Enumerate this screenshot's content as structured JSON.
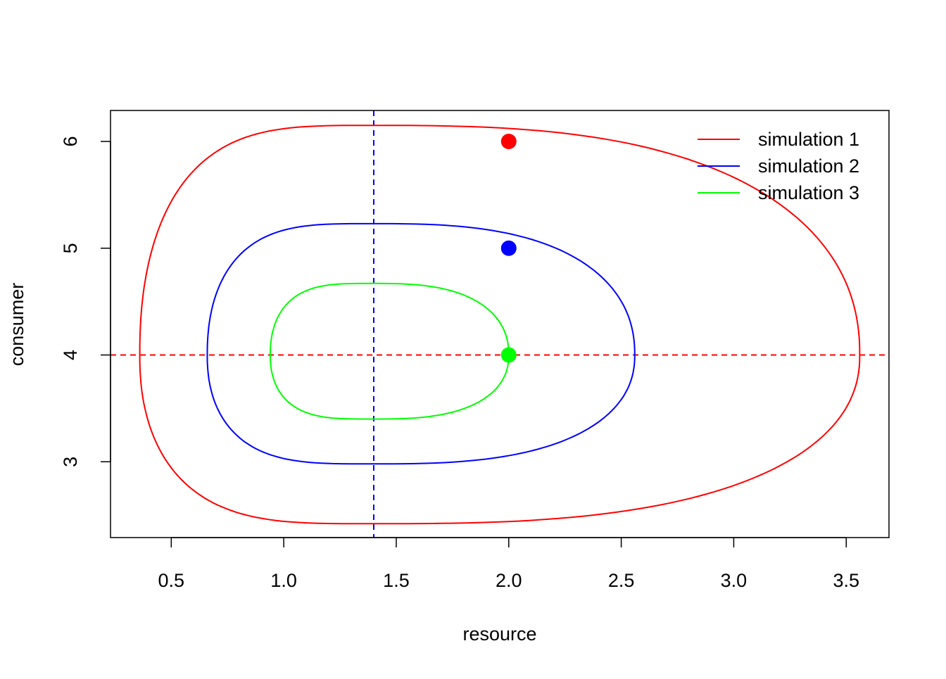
{
  "chart_data": {
    "type": "line",
    "title": "",
    "xlabel": "resource",
    "ylabel": "consumer",
    "xlim": [
      0.23,
      3.69
    ],
    "ylim": [
      2.29,
      6.29
    ],
    "xticks": [
      "0.5",
      "1.0",
      "1.5",
      "2.0",
      "2.5",
      "3.0",
      "3.5"
    ],
    "yticks": [
      "3",
      "4",
      "5",
      "6"
    ],
    "xtick_values": [
      0.5,
      1.0,
      1.5,
      2.0,
      2.5,
      3.0,
      3.5
    ],
    "ytick_values": [
      3,
      4,
      5,
      6
    ],
    "grid": false,
    "legend_position": "top-right",
    "reference_lines": [
      {
        "orientation": "vertical",
        "x": 1.4,
        "color": "#0000ff",
        "style": "dashed"
      },
      {
        "orientation": "horizontal",
        "y": 4.0,
        "color": "#ff0000",
        "style": "dashed"
      }
    ],
    "series": [
      {
        "name": "simulation 1",
        "color": "#ff0000",
        "start": [
          2.0,
          6.0
        ],
        "orbit": {
          "x_min": 0.36,
          "x_max": 3.56,
          "y_min": 2.42,
          "y_max": 6.15
        }
      },
      {
        "name": "simulation 2",
        "color": "#0000ff",
        "start": [
          2.0,
          5.0
        ],
        "orbit": {
          "x_min": 0.66,
          "x_max": 2.56,
          "y_min": 2.98,
          "y_max": 5.23
        }
      },
      {
        "name": "simulation 3",
        "color": "#00ff00",
        "start": [
          2.0,
          4.0
        ],
        "orbit": {
          "x_min": 0.94,
          "x_max": 2.0,
          "y_min": 3.4,
          "y_max": 4.67
        }
      }
    ]
  }
}
